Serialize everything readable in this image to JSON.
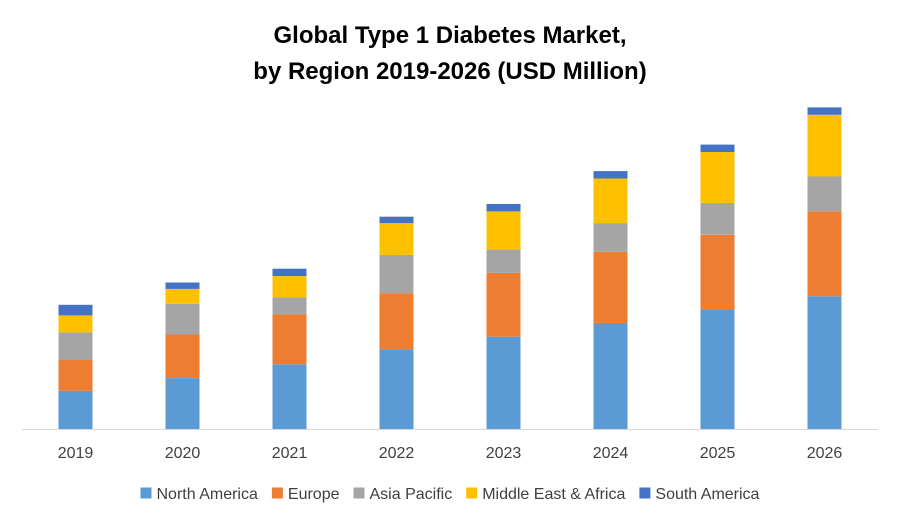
{
  "chart_data": {
    "type": "bar",
    "stacked": true,
    "title": [
      "Global Type 1 Diabetes Market,",
      "by Region 2019-2026 (USD Million)"
    ],
    "categories": [
      "2019",
      "2020",
      "2021",
      "2022",
      "2023",
      "2024",
      "2025",
      "2026"
    ],
    "series": [
      {
        "name": "North America",
        "color": "#5B9BD5",
        "values": [
          36,
          48,
          61,
          75,
          87,
          100,
          113,
          125
        ]
      },
      {
        "name": "Europe",
        "color": "#ED7D31",
        "values": [
          29,
          41,
          47,
          53,
          60,
          67,
          70,
          80
        ]
      },
      {
        "name": "Asia Pacific",
        "color": "#A5A5A5",
        "values": [
          26,
          29,
          16,
          36,
          22,
          27,
          30,
          33
        ]
      },
      {
        "name": "Middle East & Africa",
        "color": "#FFC000",
        "values": [
          16,
          14,
          20,
          30,
          36,
          42,
          48,
          58
        ]
      },
      {
        "name": "South America",
        "color": "#4472C4",
        "values": [
          10,
          6,
          7,
          6,
          7,
          7,
          7,
          7
        ]
      }
    ],
    "ylim": [
      0,
      310
    ],
    "grid": false,
    "legend_position": "bottom"
  }
}
